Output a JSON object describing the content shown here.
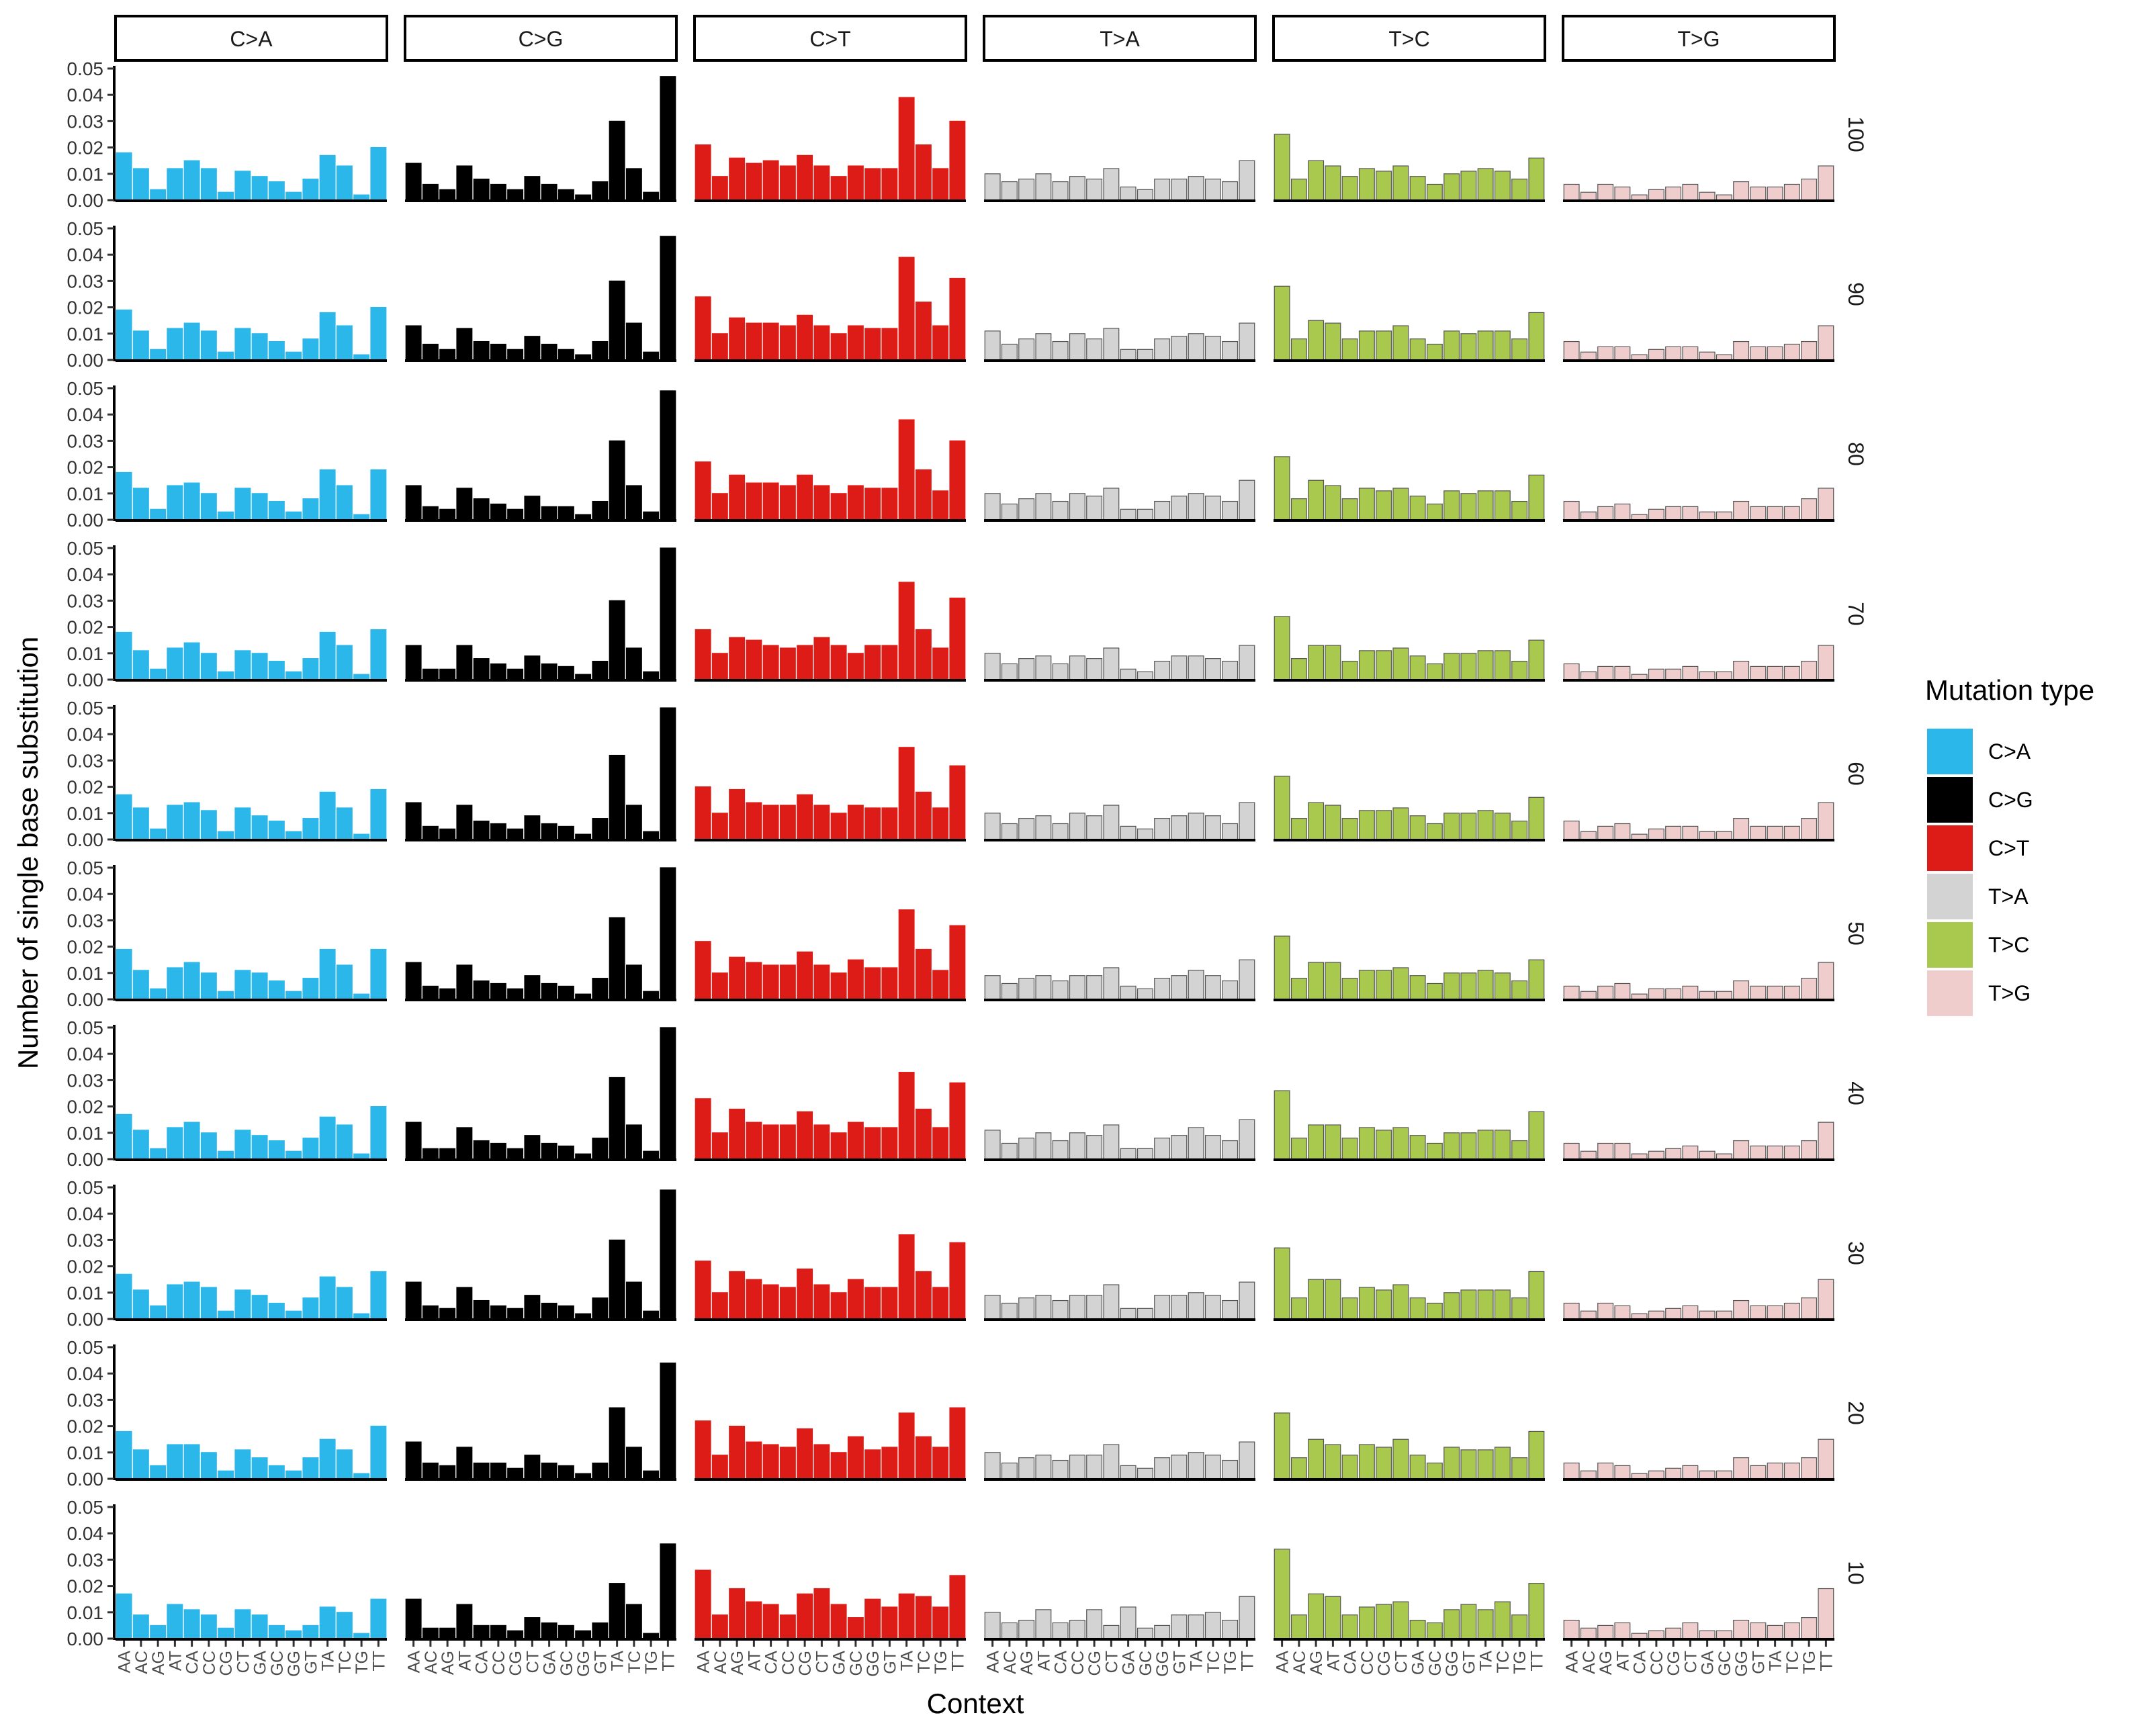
{
  "chart_data": {
    "type": "bar",
    "ylabel": "Number of single base substitution",
    "xlabel": "Context",
    "ylim": [
      0,
      0.05
    ],
    "yticks": [
      "0.00",
      "0.01",
      "0.02",
      "0.03",
      "0.04",
      "0.05"
    ],
    "grid": false,
    "legend": {
      "title": "Mutation type",
      "position": "right",
      "entries": [
        "C>A",
        "C>G",
        "C>T",
        "T>A",
        "T>C",
        "T>G"
      ]
    },
    "colors": {
      "C>A": "#2cb7ea",
      "C>G": "#000000",
      "C>T": "#dd1c17",
      "T>A": "#d3d3d3",
      "T>C": "#a8c94d",
      "T>G": "#efcdcc"
    },
    "categories": [
      "AA",
      "AC",
      "AG",
      "AT",
      "CA",
      "CC",
      "CG",
      "CT",
      "GA",
      "GC",
      "GG",
      "GT",
      "TA",
      "TC",
      "TG",
      "TT"
    ],
    "column_facets": [
      "C>A",
      "C>G",
      "C>T",
      "T>A",
      "T>C",
      "T>G"
    ],
    "row_facets": [
      "100",
      "90",
      "80",
      "70",
      "60",
      "50",
      "40",
      "30",
      "20",
      "10"
    ],
    "panels": {
      "100": {
        "C>A": [
          0.018,
          0.012,
          0.004,
          0.012,
          0.015,
          0.012,
          0.003,
          0.011,
          0.009,
          0.007,
          0.003,
          0.008,
          0.017,
          0.013,
          0.002,
          0.02
        ],
        "C>G": [
          0.014,
          0.006,
          0.004,
          0.013,
          0.008,
          0.006,
          0.004,
          0.009,
          0.006,
          0.004,
          0.002,
          0.007,
          0.03,
          0.012,
          0.003,
          0.047
        ],
        "C>T": [
          0.021,
          0.009,
          0.016,
          0.014,
          0.015,
          0.013,
          0.017,
          0.013,
          0.009,
          0.013,
          0.012,
          0.012,
          0.039,
          0.021,
          0.012,
          0.03
        ],
        "T>A": [
          0.01,
          0.007,
          0.008,
          0.01,
          0.007,
          0.009,
          0.008,
          0.012,
          0.005,
          0.004,
          0.008,
          0.008,
          0.009,
          0.008,
          0.007,
          0.015
        ],
        "T>C": [
          0.025,
          0.008,
          0.015,
          0.013,
          0.009,
          0.012,
          0.011,
          0.013,
          0.009,
          0.006,
          0.01,
          0.011,
          0.012,
          0.011,
          0.008,
          0.016
        ],
        "T>G": [
          0.006,
          0.003,
          0.006,
          0.005,
          0.002,
          0.004,
          0.005,
          0.006,
          0.003,
          0.002,
          0.007,
          0.005,
          0.005,
          0.006,
          0.008,
          0.013
        ]
      },
      "90": {
        "C>A": [
          0.019,
          0.011,
          0.004,
          0.012,
          0.014,
          0.011,
          0.003,
          0.012,
          0.01,
          0.007,
          0.003,
          0.008,
          0.018,
          0.013,
          0.002,
          0.02
        ],
        "C>G": [
          0.013,
          0.006,
          0.004,
          0.012,
          0.007,
          0.006,
          0.004,
          0.009,
          0.006,
          0.004,
          0.002,
          0.007,
          0.03,
          0.014,
          0.003,
          0.047
        ],
        "C>T": [
          0.024,
          0.01,
          0.016,
          0.014,
          0.014,
          0.013,
          0.017,
          0.013,
          0.01,
          0.013,
          0.012,
          0.012,
          0.039,
          0.022,
          0.013,
          0.031
        ],
        "T>A": [
          0.011,
          0.006,
          0.008,
          0.01,
          0.007,
          0.01,
          0.008,
          0.012,
          0.004,
          0.004,
          0.008,
          0.009,
          0.01,
          0.009,
          0.007,
          0.014
        ],
        "T>C": [
          0.028,
          0.008,
          0.015,
          0.014,
          0.008,
          0.011,
          0.011,
          0.013,
          0.008,
          0.006,
          0.011,
          0.01,
          0.011,
          0.011,
          0.008,
          0.018
        ],
        "T>G": [
          0.007,
          0.003,
          0.005,
          0.005,
          0.002,
          0.004,
          0.005,
          0.005,
          0.003,
          0.002,
          0.007,
          0.005,
          0.005,
          0.006,
          0.007,
          0.013
        ]
      },
      "80": {
        "C>A": [
          0.018,
          0.012,
          0.004,
          0.013,
          0.014,
          0.01,
          0.003,
          0.012,
          0.01,
          0.007,
          0.003,
          0.008,
          0.019,
          0.013,
          0.002,
          0.019
        ],
        "C>G": [
          0.013,
          0.005,
          0.004,
          0.012,
          0.008,
          0.006,
          0.004,
          0.009,
          0.005,
          0.005,
          0.002,
          0.007,
          0.03,
          0.013,
          0.003,
          0.049
        ],
        "C>T": [
          0.022,
          0.01,
          0.017,
          0.014,
          0.014,
          0.013,
          0.017,
          0.013,
          0.01,
          0.013,
          0.012,
          0.012,
          0.038,
          0.019,
          0.011,
          0.03
        ],
        "T>A": [
          0.01,
          0.006,
          0.008,
          0.01,
          0.007,
          0.01,
          0.009,
          0.012,
          0.004,
          0.004,
          0.007,
          0.009,
          0.01,
          0.009,
          0.007,
          0.015
        ],
        "T>C": [
          0.024,
          0.008,
          0.015,
          0.013,
          0.008,
          0.012,
          0.011,
          0.012,
          0.009,
          0.006,
          0.011,
          0.01,
          0.011,
          0.011,
          0.007,
          0.017
        ],
        "T>G": [
          0.007,
          0.003,
          0.005,
          0.006,
          0.002,
          0.004,
          0.005,
          0.005,
          0.003,
          0.003,
          0.007,
          0.005,
          0.005,
          0.005,
          0.008,
          0.012
        ]
      },
      "70": {
        "C>A": [
          0.018,
          0.011,
          0.004,
          0.012,
          0.014,
          0.01,
          0.003,
          0.011,
          0.01,
          0.007,
          0.003,
          0.008,
          0.018,
          0.013,
          0.002,
          0.019
        ],
        "C>G": [
          0.013,
          0.004,
          0.004,
          0.013,
          0.008,
          0.006,
          0.004,
          0.009,
          0.006,
          0.005,
          0.002,
          0.007,
          0.03,
          0.012,
          0.003,
          0.05
        ],
        "C>T": [
          0.019,
          0.01,
          0.016,
          0.015,
          0.013,
          0.012,
          0.013,
          0.016,
          0.013,
          0.01,
          0.013,
          0.013,
          0.037,
          0.019,
          0.012,
          0.031
        ],
        "T>A": [
          0.01,
          0.006,
          0.008,
          0.009,
          0.006,
          0.009,
          0.008,
          0.012,
          0.004,
          0.003,
          0.007,
          0.009,
          0.009,
          0.008,
          0.007,
          0.013
        ],
        "T>C": [
          0.024,
          0.008,
          0.013,
          0.013,
          0.007,
          0.011,
          0.011,
          0.012,
          0.009,
          0.006,
          0.01,
          0.01,
          0.011,
          0.011,
          0.007,
          0.015
        ],
        "T>G": [
          0.006,
          0.003,
          0.005,
          0.005,
          0.002,
          0.004,
          0.004,
          0.005,
          0.003,
          0.003,
          0.007,
          0.005,
          0.005,
          0.005,
          0.007,
          0.013
        ]
      },
      "60": {
        "C>A": [
          0.017,
          0.012,
          0.004,
          0.013,
          0.014,
          0.011,
          0.003,
          0.012,
          0.009,
          0.007,
          0.003,
          0.008,
          0.018,
          0.012,
          0.002,
          0.019
        ],
        "C>G": [
          0.014,
          0.005,
          0.004,
          0.013,
          0.007,
          0.006,
          0.004,
          0.009,
          0.006,
          0.005,
          0.002,
          0.008,
          0.032,
          0.013,
          0.003,
          0.05
        ],
        "C>T": [
          0.02,
          0.01,
          0.019,
          0.014,
          0.013,
          0.013,
          0.017,
          0.013,
          0.01,
          0.013,
          0.012,
          0.012,
          0.035,
          0.018,
          0.012,
          0.028
        ],
        "T>A": [
          0.01,
          0.006,
          0.008,
          0.009,
          0.006,
          0.01,
          0.009,
          0.013,
          0.005,
          0.004,
          0.008,
          0.009,
          0.01,
          0.009,
          0.006,
          0.014
        ],
        "T>C": [
          0.024,
          0.008,
          0.014,
          0.013,
          0.008,
          0.011,
          0.011,
          0.012,
          0.009,
          0.006,
          0.01,
          0.01,
          0.011,
          0.01,
          0.007,
          0.016
        ],
        "T>G": [
          0.007,
          0.003,
          0.005,
          0.006,
          0.002,
          0.004,
          0.005,
          0.005,
          0.003,
          0.003,
          0.008,
          0.005,
          0.005,
          0.005,
          0.008,
          0.014
        ]
      },
      "50": {
        "C>A": [
          0.019,
          0.011,
          0.004,
          0.012,
          0.014,
          0.01,
          0.003,
          0.011,
          0.01,
          0.007,
          0.003,
          0.008,
          0.019,
          0.013,
          0.002,
          0.019
        ],
        "C>G": [
          0.014,
          0.005,
          0.004,
          0.013,
          0.007,
          0.006,
          0.004,
          0.009,
          0.006,
          0.005,
          0.002,
          0.008,
          0.031,
          0.013,
          0.003,
          0.05
        ],
        "C>T": [
          0.022,
          0.01,
          0.016,
          0.014,
          0.013,
          0.013,
          0.018,
          0.013,
          0.01,
          0.015,
          0.012,
          0.012,
          0.034,
          0.019,
          0.011,
          0.028
        ],
        "T>A": [
          0.009,
          0.006,
          0.008,
          0.009,
          0.007,
          0.009,
          0.009,
          0.012,
          0.005,
          0.004,
          0.008,
          0.009,
          0.011,
          0.009,
          0.007,
          0.015
        ],
        "T>C": [
          0.024,
          0.008,
          0.014,
          0.014,
          0.008,
          0.011,
          0.011,
          0.012,
          0.009,
          0.006,
          0.01,
          0.01,
          0.011,
          0.01,
          0.007,
          0.015
        ],
        "T>G": [
          0.005,
          0.003,
          0.005,
          0.006,
          0.002,
          0.004,
          0.004,
          0.005,
          0.003,
          0.003,
          0.007,
          0.005,
          0.005,
          0.005,
          0.008,
          0.014
        ]
      },
      "40": {
        "C>A": [
          0.017,
          0.011,
          0.004,
          0.012,
          0.014,
          0.01,
          0.003,
          0.011,
          0.009,
          0.007,
          0.003,
          0.008,
          0.016,
          0.013,
          0.002,
          0.02
        ],
        "C>G": [
          0.014,
          0.004,
          0.004,
          0.012,
          0.007,
          0.006,
          0.004,
          0.009,
          0.006,
          0.005,
          0.002,
          0.008,
          0.031,
          0.013,
          0.003,
          0.05
        ],
        "C>T": [
          0.023,
          0.01,
          0.019,
          0.014,
          0.013,
          0.013,
          0.018,
          0.013,
          0.01,
          0.014,
          0.012,
          0.012,
          0.033,
          0.019,
          0.012,
          0.029
        ],
        "T>A": [
          0.011,
          0.006,
          0.008,
          0.01,
          0.007,
          0.01,
          0.009,
          0.013,
          0.004,
          0.004,
          0.008,
          0.009,
          0.012,
          0.009,
          0.007,
          0.015
        ],
        "T>C": [
          0.026,
          0.008,
          0.013,
          0.013,
          0.008,
          0.012,
          0.011,
          0.012,
          0.009,
          0.006,
          0.01,
          0.01,
          0.011,
          0.011,
          0.007,
          0.018
        ],
        "T>G": [
          0.006,
          0.003,
          0.006,
          0.006,
          0.002,
          0.003,
          0.004,
          0.005,
          0.003,
          0.002,
          0.007,
          0.005,
          0.005,
          0.005,
          0.007,
          0.014
        ]
      },
      "30": {
        "C>A": [
          0.017,
          0.011,
          0.005,
          0.013,
          0.014,
          0.012,
          0.003,
          0.011,
          0.009,
          0.006,
          0.003,
          0.008,
          0.016,
          0.012,
          0.002,
          0.018
        ],
        "C>G": [
          0.014,
          0.005,
          0.004,
          0.012,
          0.007,
          0.005,
          0.004,
          0.009,
          0.006,
          0.005,
          0.002,
          0.008,
          0.03,
          0.014,
          0.003,
          0.049
        ],
        "C>T": [
          0.022,
          0.01,
          0.018,
          0.015,
          0.013,
          0.012,
          0.019,
          0.013,
          0.01,
          0.015,
          0.012,
          0.012,
          0.032,
          0.018,
          0.012,
          0.029
        ],
        "T>A": [
          0.009,
          0.006,
          0.008,
          0.009,
          0.007,
          0.009,
          0.009,
          0.013,
          0.004,
          0.004,
          0.009,
          0.009,
          0.01,
          0.009,
          0.007,
          0.014
        ],
        "T>C": [
          0.027,
          0.008,
          0.015,
          0.015,
          0.008,
          0.012,
          0.011,
          0.013,
          0.008,
          0.006,
          0.01,
          0.011,
          0.011,
          0.011,
          0.008,
          0.018
        ],
        "T>G": [
          0.006,
          0.003,
          0.006,
          0.005,
          0.002,
          0.003,
          0.004,
          0.005,
          0.003,
          0.003,
          0.007,
          0.005,
          0.005,
          0.006,
          0.008,
          0.015
        ]
      },
      "20": {
        "C>A": [
          0.018,
          0.011,
          0.005,
          0.013,
          0.013,
          0.01,
          0.003,
          0.011,
          0.008,
          0.005,
          0.003,
          0.008,
          0.015,
          0.011,
          0.002,
          0.02
        ],
        "C>G": [
          0.014,
          0.006,
          0.005,
          0.012,
          0.006,
          0.006,
          0.004,
          0.009,
          0.006,
          0.005,
          0.002,
          0.006,
          0.027,
          0.012,
          0.003,
          0.044
        ],
        "C>T": [
          0.022,
          0.009,
          0.02,
          0.014,
          0.013,
          0.012,
          0.019,
          0.013,
          0.01,
          0.016,
          0.011,
          0.012,
          0.025,
          0.016,
          0.012,
          0.027
        ],
        "T>A": [
          0.01,
          0.006,
          0.008,
          0.009,
          0.007,
          0.009,
          0.009,
          0.013,
          0.005,
          0.004,
          0.008,
          0.009,
          0.01,
          0.009,
          0.007,
          0.014
        ],
        "T>C": [
          0.025,
          0.008,
          0.015,
          0.013,
          0.009,
          0.013,
          0.012,
          0.015,
          0.009,
          0.006,
          0.012,
          0.011,
          0.011,
          0.012,
          0.008,
          0.018
        ],
        "T>G": [
          0.006,
          0.003,
          0.006,
          0.005,
          0.002,
          0.003,
          0.004,
          0.005,
          0.003,
          0.003,
          0.008,
          0.005,
          0.006,
          0.006,
          0.008,
          0.015
        ]
      },
      "10": {
        "C>A": [
          0.017,
          0.009,
          0.005,
          0.013,
          0.011,
          0.009,
          0.004,
          0.011,
          0.009,
          0.005,
          0.003,
          0.005,
          0.012,
          0.01,
          0.002,
          0.015
        ],
        "C>G": [
          0.015,
          0.004,
          0.004,
          0.013,
          0.005,
          0.005,
          0.003,
          0.008,
          0.006,
          0.005,
          0.003,
          0.006,
          0.021,
          0.013,
          0.002,
          0.036
        ],
        "C>T": [
          0.026,
          0.009,
          0.019,
          0.014,
          0.013,
          0.009,
          0.017,
          0.019,
          0.013,
          0.008,
          0.015,
          0.012,
          0.017,
          0.016,
          0.012,
          0.024
        ],
        "T>A": [
          0.01,
          0.006,
          0.007,
          0.011,
          0.006,
          0.007,
          0.011,
          0.005,
          0.012,
          0.004,
          0.005,
          0.009,
          0.009,
          0.01,
          0.007,
          0.016
        ],
        "T>C": [
          0.034,
          0.009,
          0.017,
          0.016,
          0.009,
          0.012,
          0.013,
          0.014,
          0.007,
          0.006,
          0.011,
          0.013,
          0.011,
          0.014,
          0.009,
          0.021
        ],
        "T>G": [
          0.007,
          0.004,
          0.005,
          0.006,
          0.002,
          0.003,
          0.004,
          0.006,
          0.003,
          0.003,
          0.007,
          0.006,
          0.005,
          0.006,
          0.008,
          0.019
        ]
      }
    }
  }
}
